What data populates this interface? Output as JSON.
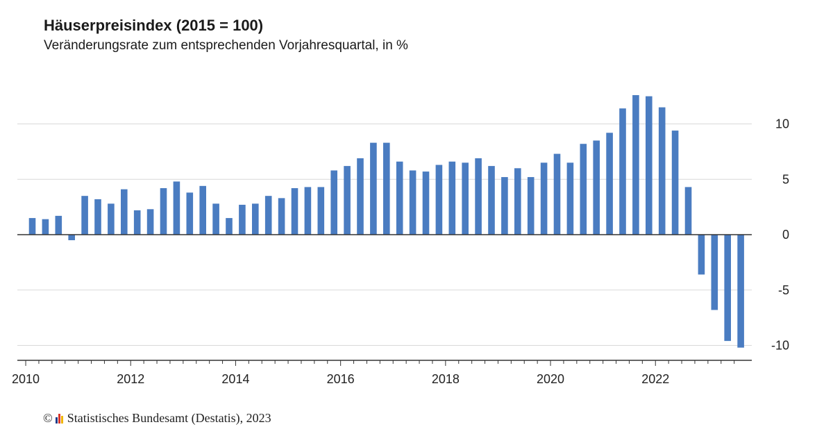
{
  "title": "Häuserpreisindex (2015 = 100)",
  "subtitle": "Veränderungsrate zum entsprechenden Vorjahresquartal, in %",
  "footer": {
    "copyright_symbol": "©",
    "source": "Statistisches Bundesamt (Destatis), 2023"
  },
  "colors": {
    "bar": "#4a7cc1",
    "gridline": "#d9d9d9",
    "axis": "#333333",
    "logo": [
      "#1f3c88",
      "#d9342b",
      "#f0b400"
    ]
  },
  "chart_data": {
    "type": "bar",
    "x_tick_labels": [
      "2010",
      "2012",
      "2014",
      "2016",
      "2018",
      "2020",
      "2022"
    ],
    "y_tick_labels": [
      "10",
      "5",
      "0",
      "-5",
      "-10"
    ],
    "y_ticks": [
      10,
      5,
      0,
      -5,
      -10
    ],
    "ylim": [
      -11.2,
      13.5
    ],
    "grid": true,
    "y_axis_position": "right",
    "categories": [
      "2010 Q1",
      "2010 Q2",
      "2010 Q3",
      "2010 Q4",
      "2011 Q1",
      "2011 Q2",
      "2011 Q3",
      "2011 Q4",
      "2012 Q1",
      "2012 Q2",
      "2012 Q3",
      "2012 Q4",
      "2013 Q1",
      "2013 Q2",
      "2013 Q3",
      "2013 Q4",
      "2014 Q1",
      "2014 Q2",
      "2014 Q3",
      "2014 Q4",
      "2015 Q1",
      "2015 Q2",
      "2015 Q3",
      "2015 Q4",
      "2016 Q1",
      "2016 Q2",
      "2016 Q3",
      "2016 Q4",
      "2017 Q1",
      "2017 Q2",
      "2017 Q3",
      "2017 Q4",
      "2018 Q1",
      "2018 Q2",
      "2018 Q3",
      "2018 Q4",
      "2019 Q1",
      "2019 Q2",
      "2019 Q3",
      "2019 Q4",
      "2020 Q1",
      "2020 Q2",
      "2020 Q3",
      "2020 Q4",
      "2021 Q1",
      "2021 Q2",
      "2021 Q3",
      "2021 Q4",
      "2022 Q1",
      "2022 Q2",
      "2022 Q3",
      "2022 Q4",
      "2023 Q1",
      "2023 Q2",
      "2023 Q3"
    ],
    "values": [
      1.5,
      1.4,
      1.7,
      -0.5,
      3.5,
      3.2,
      2.8,
      4.1,
      2.2,
      2.3,
      4.2,
      4.8,
      3.8,
      4.4,
      2.8,
      1.5,
      2.7,
      2.8,
      3.5,
      3.3,
      4.2,
      4.3,
      4.3,
      5.8,
      6.2,
      6.9,
      8.3,
      8.3,
      6.6,
      5.8,
      5.7,
      6.3,
      6.6,
      6.5,
      6.9,
      6.2,
      5.2,
      6.0,
      5.2,
      6.5,
      7.3,
      6.5,
      8.2,
      8.5,
      9.2,
      11.4,
      12.6,
      12.5,
      11.5,
      9.4,
      4.3,
      -3.6,
      -6.8,
      -9.6,
      -10.2
    ]
  }
}
